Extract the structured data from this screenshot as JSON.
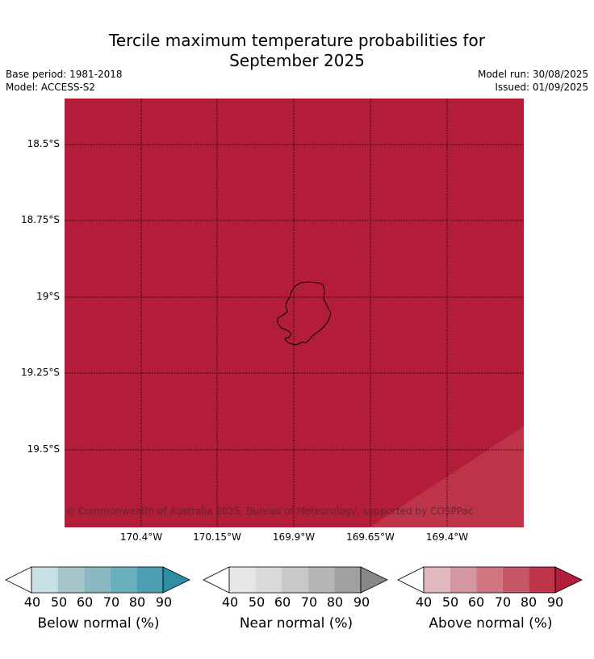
{
  "header": {
    "title_line1": "Tercile maximum temperature probabilities for",
    "title_line2": "September 2025",
    "base_period": "Base period: 1981-2018",
    "model": "Model: ACCESS-S2",
    "model_run": "Model run: 30/08/2025",
    "issued": "Issued: 01/09/2025"
  },
  "map": {
    "fill_color": "#b31d3a",
    "corner_fill_color": "#bd3449",
    "lat_ticks": [
      "18.5°S",
      "18.75°S",
      "19°S",
      "19.25°S",
      "19.5°S"
    ],
    "lon_ticks": [
      "170.4°W",
      "170.15°W",
      "169.9°W",
      "169.65°W",
      "169.4°W"
    ],
    "copyright": "© Commonwealth of Australia 2025, Bureau of Meteorology, supported by COSPPac"
  },
  "colorbars": [
    {
      "label": "Below normal (%)",
      "ticks": [
        "40",
        "50",
        "60",
        "70",
        "80",
        "90"
      ],
      "colors": [
        "#ffffff",
        "#c6e0e6",
        "#a6c5cb",
        "#89b8c3",
        "#6aafbd",
        "#4b9fb0",
        "#2b8fa3"
      ]
    },
    {
      "label": "Near normal (%)",
      "ticks": [
        "40",
        "50",
        "60",
        "70",
        "80",
        "90"
      ],
      "colors": [
        "#ffffff",
        "#e6e6e6",
        "#d9d9d9",
        "#c8c8c8",
        "#b5b5b5",
        "#a0a0a0",
        "#888888"
      ]
    },
    {
      "label": "Above normal (%)",
      "ticks": [
        "40",
        "50",
        "60",
        "70",
        "80",
        "90"
      ],
      "colors": [
        "#ffffff",
        "#e2b8bf",
        "#d5979f",
        "#d17680",
        "#c65566",
        "#be3449",
        "#b31d3a"
      ]
    }
  ]
}
